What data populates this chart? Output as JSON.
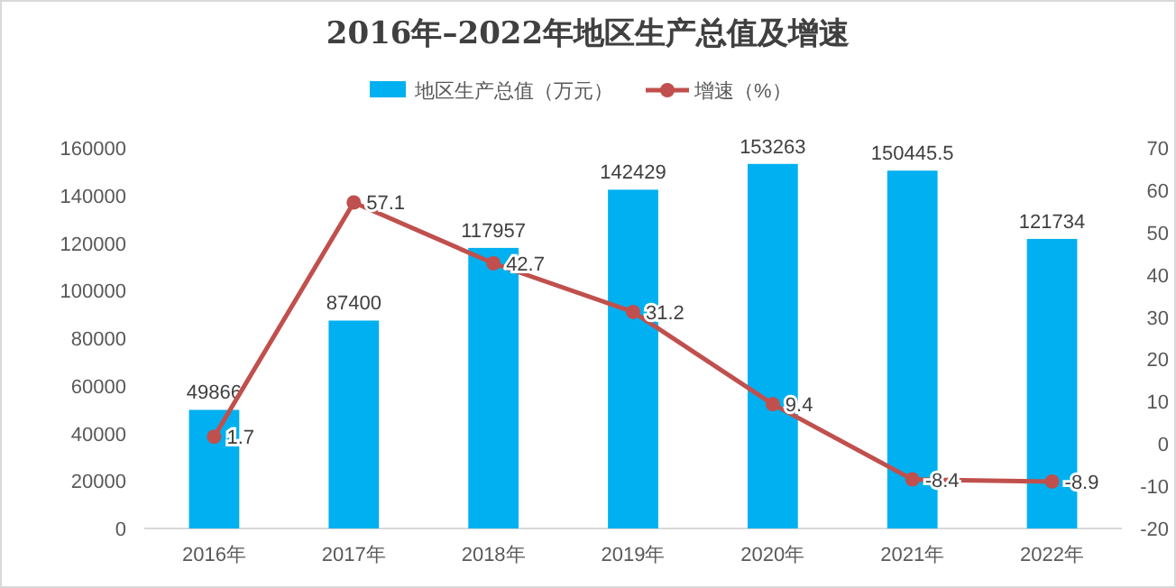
{
  "chart_data": {
    "type": "bar",
    "title": "2016年–2022年地区生产总值及增速",
    "categories": [
      "2016年",
      "2017年",
      "2018年",
      "2019年",
      "2020年",
      "2021年",
      "2022年"
    ],
    "series": [
      {
        "name": "地区生产总值（万元）",
        "color": "#00b0f0",
        "values": [
          49866,
          87400,
          117957,
          142429,
          153263,
          150445.5,
          121734
        ]
      },
      {
        "name": "增速（%）",
        "type": "line",
        "axis": "y2",
        "color": "#c0504d",
        "values": [
          1.7,
          57.1,
          42.7,
          31.2,
          9.4,
          -8.4,
          -8.9
        ]
      }
    ],
    "ylim": [
      0,
      160000
    ],
    "yticks": [
      0,
      20000,
      40000,
      60000,
      80000,
      100000,
      120000,
      140000,
      160000
    ],
    "y2lim": [
      -20,
      70
    ],
    "y2ticks": [
      -20,
      -10,
      0,
      10,
      20,
      30,
      40,
      50,
      60,
      70
    ],
    "data_labels": true,
    "legend": "top",
    "marker": "circle",
    "line_style": "solid"
  }
}
